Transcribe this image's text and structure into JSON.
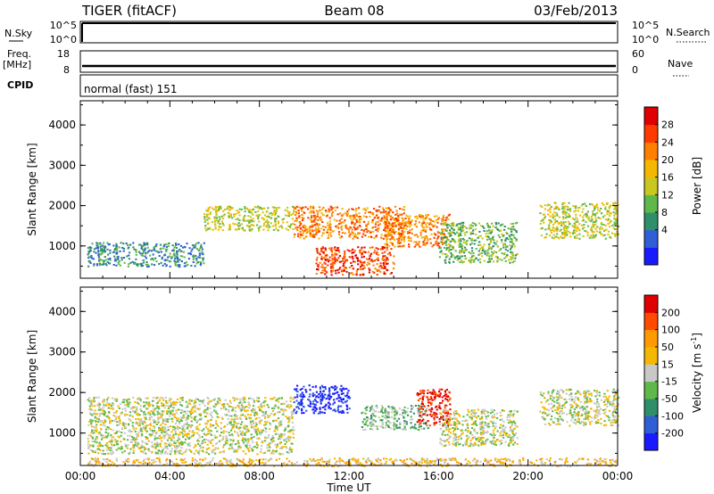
{
  "header": {
    "radar": "TIGER (fitACF)",
    "beam": "Beam 08",
    "date": "03/Feb/2013"
  },
  "strips": {
    "nsky": {
      "label": "N.Sky",
      "ticks": [
        "10^5",
        "10^0"
      ]
    },
    "nsearch": {
      "label": "N.Search",
      "ticks": [
        "10^5",
        "10^0"
      ]
    },
    "freq": {
      "label1": "Freq.",
      "label2": "[MHz]",
      "ticks": [
        "18",
        "8"
      ]
    },
    "nave": {
      "label": "Nave",
      "ticks": [
        "60",
        "0"
      ]
    },
    "cpid": {
      "label": "CPID",
      "text": "normal (fast) 151"
    }
  },
  "chart_data": [
    {
      "type": "heatmap",
      "name": "power",
      "ylabel": "Slant Range [km]",
      "xlabel": "",
      "yticks": [
        "4000",
        "3000",
        "2000",
        "1000"
      ],
      "ylim": [
        200,
        4600
      ],
      "colorbar": {
        "label": "Power [dB]",
        "ticks": [
          "28",
          "24",
          "20",
          "16",
          "12",
          "8",
          "4"
        ],
        "colors": [
          "#1a1aff",
          "#2e5fd6",
          "#2f8f6a",
          "#5fb94a",
          "#c8c820",
          "#f5b800",
          "#ff7f00",
          "#ff3a00",
          "#e00000"
        ]
      },
      "regions": [
        {
          "t0": 0.3,
          "t1": 5.5,
          "r0": 500,
          "r1": 1100,
          "level": 2
        },
        {
          "t0": 5.5,
          "t1": 9.5,
          "r0": 1400,
          "r1": 2000,
          "level": 4
        },
        {
          "t0": 9.5,
          "t1": 14.5,
          "r0": 1200,
          "r1": 2000,
          "level": 6
        },
        {
          "t0": 10.5,
          "t1": 14.0,
          "r0": 300,
          "r1": 1000,
          "level": 7
        },
        {
          "t0": 13.5,
          "t1": 16.5,
          "r0": 1000,
          "r1": 1800,
          "level": 6
        },
        {
          "t0": 16.0,
          "t1": 19.5,
          "r0": 600,
          "r1": 1600,
          "level": 3
        },
        {
          "t0": 20.5,
          "t1": 24.0,
          "r0": 1200,
          "r1": 2100,
          "level": 4
        }
      ]
    },
    {
      "type": "heatmap",
      "name": "velocity",
      "ylabel": "Slant Range [km]",
      "xlabel": "Time UT",
      "x": [
        "00:00",
        "04:00",
        "08:00",
        "12:00",
        "16:00",
        "20:00",
        "00:00"
      ],
      "yticks": [
        "4000",
        "3000",
        "2000",
        "1000"
      ],
      "ylim": [
        200,
        4600
      ],
      "colorbar": {
        "label": "Velocity [m s",
        "label_sup": "-1",
        "label_end": "]",
        "ticks": [
          "200",
          "100",
          "50",
          "15",
          "-15",
          "-50",
          "-100",
          "-200"
        ],
        "colors": [
          "#1a1aff",
          "#2e5fd6",
          "#2f8f6a",
          "#5fb94a",
          "#c8c8c8",
          "#f5b800",
          "#ff9a00",
          "#ff4a00",
          "#e00000"
        ]
      },
      "regions": [
        {
          "t0": 0.3,
          "t1": 9.5,
          "r0": 500,
          "r1": 1900,
          "level": 4
        },
        {
          "t0": 9.5,
          "t1": 12.0,
          "r0": 1500,
          "r1": 2200,
          "level": 0
        },
        {
          "t0": 12.5,
          "t1": 15.5,
          "r0": 1100,
          "r1": 1700,
          "level": 3
        },
        {
          "t0": 15.0,
          "t1": 16.5,
          "r0": 1200,
          "r1": 2100,
          "level": 8
        },
        {
          "t0": 16.0,
          "t1": 19.5,
          "r0": 700,
          "r1": 1600,
          "level": 4
        },
        {
          "t0": 20.5,
          "t1": 24.0,
          "r0": 1200,
          "r1": 2100,
          "level": 4
        },
        {
          "t0": 0.3,
          "t1": 24.0,
          "r0": 200,
          "r1": 400,
          "level": 5
        }
      ]
    }
  ]
}
